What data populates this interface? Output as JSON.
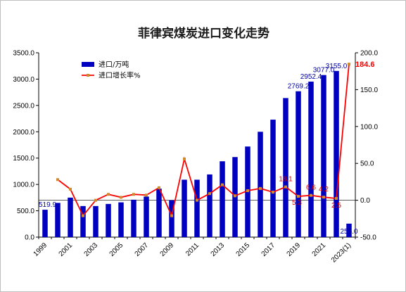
{
  "chart_data": {
    "type": "bar",
    "title": "菲律宾煤炭进口变化走势",
    "categories": [
      "1999",
      "2000",
      "2001",
      "2002",
      "2003",
      "2004",
      "2005",
      "2006",
      "2007",
      "2008",
      "2009",
      "2010",
      "2011",
      "2012",
      "2013",
      "2014",
      "2015",
      "2016",
      "2017",
      "2018",
      "2019",
      "2020",
      "2021",
      "2022",
      "2023(1)"
    ],
    "x_tick_labels": [
      "1999",
      "2001",
      "2003",
      "2005",
      "2007",
      "2009",
      "2011",
      "2013",
      "2015",
      "2017",
      "2019",
      "2021",
      "2023(1)"
    ],
    "series": [
      {
        "name": "进口/万吨",
        "kind": "bar",
        "axis": "left",
        "color": "#0000c0",
        "values": [
          519.9,
          650,
          750,
          590,
          590,
          630,
          660,
          710,
          770,
          920,
          700,
          1090,
          1090,
          1190,
          1440,
          1520,
          1720,
          2000,
          2230,
          2640,
          2769.2,
          2952.4,
          3077.0,
          3155.0,
          256.0
        ],
        "data_labels": [
          "519.9",
          null,
          null,
          null,
          null,
          null,
          null,
          null,
          null,
          null,
          null,
          null,
          null,
          null,
          null,
          null,
          null,
          null,
          null,
          null,
          "2769.2",
          "2952.4",
          "3077.0",
          "3155.0",
          "256.0"
        ]
      },
      {
        "name": "进口增长率%",
        "kind": "line",
        "axis": "right",
        "color": "#ff0000",
        "marker_color": "#d08a2e",
        "values": [
          null,
          28,
          15,
          -21,
          0,
          8,
          4,
          8,
          7,
          17,
          -21,
          56,
          0,
          9,
          21,
          6,
          13,
          16,
          11,
          18.1,
          5.3,
          6.6,
          4.2,
          2.5,
          184.6
        ],
        "data_labels": [
          null,
          null,
          null,
          null,
          null,
          null,
          null,
          null,
          null,
          null,
          null,
          null,
          null,
          null,
          null,
          null,
          null,
          null,
          null,
          "18.1",
          "5.3",
          "6.6",
          "4.2",
          "2.5",
          "184.6"
        ]
      }
    ],
    "y_left": {
      "lim": [
        0,
        3500
      ],
      "ticks": [
        "0.0",
        "500.0",
        "1000.0",
        "1500.0",
        "2000.0",
        "2500.0",
        "3000.0",
        "3500.0"
      ]
    },
    "y_right": {
      "lim": [
        -50,
        200
      ],
      "ticks": [
        "-50.0",
        "0.0",
        "50.0",
        "100.0",
        "150.0",
        "200.0"
      ]
    },
    "grid": false,
    "legend_position": "top-left"
  }
}
